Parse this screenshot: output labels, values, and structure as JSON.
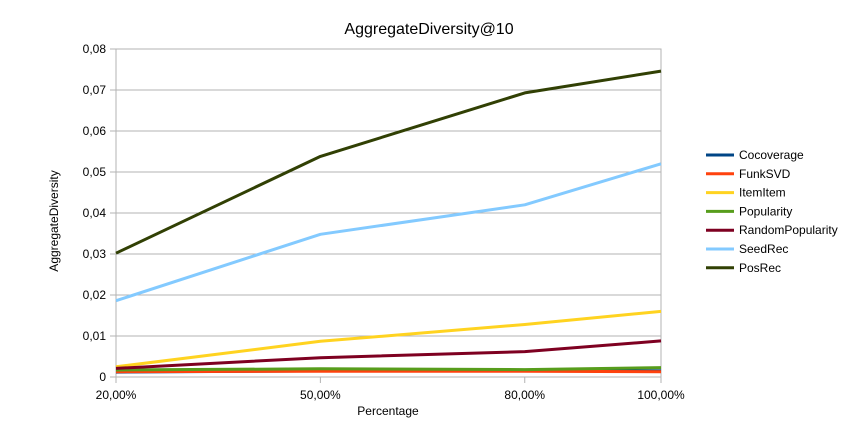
{
  "chart_data": {
    "type": "line",
    "title": "AggregateDiversity@10",
    "xlabel": "Percentage",
    "ylabel": "AggregateDiversity",
    "categories": [
      "20,00%",
      "50,00%",
      "80,00%",
      "100,00%"
    ],
    "x": [
      20,
      50,
      80,
      100
    ],
    "xlim": [
      20,
      100
    ],
    "ylim": [
      0,
      0.08
    ],
    "yticks": [
      0,
      0.01,
      0.02,
      0.03,
      0.04,
      0.05,
      0.06,
      0.07,
      0.08
    ],
    "ytick_labels": [
      "0",
      "0,01",
      "0,02",
      "0,03",
      "0,04",
      "0,05",
      "0,06",
      "0,07",
      "0,08"
    ],
    "grid": "horizontal",
    "legend": "right",
    "series": [
      {
        "name": "Cocoverage",
        "color": "#004586",
        "values": [
          0.0012,
          0.0015,
          0.0015,
          0.0015
        ]
      },
      {
        "name": "FunkSVD",
        "color": "#ff420e",
        "values": [
          0.0013,
          0.0014,
          0.0014,
          0.0013
        ]
      },
      {
        "name": "ItemItem",
        "color": "#ffd320",
        "values": [
          0.0025,
          0.0087,
          0.0128,
          0.016
        ]
      },
      {
        "name": "Popularity",
        "color": "#579d1c",
        "values": [
          0.0017,
          0.002,
          0.0018,
          0.0023
        ]
      },
      {
        "name": "RandomPopularity",
        "color": "#7e0021",
        "values": [
          0.0021,
          0.0047,
          0.0062,
          0.0088
        ]
      },
      {
        "name": "SeedRec",
        "color": "#83caff",
        "values": [
          0.0186,
          0.0348,
          0.042,
          0.052
        ]
      },
      {
        "name": "PosRec",
        "color": "#314004",
        "values": [
          0.0302,
          0.0538,
          0.0693,
          0.0746
        ]
      }
    ]
  }
}
